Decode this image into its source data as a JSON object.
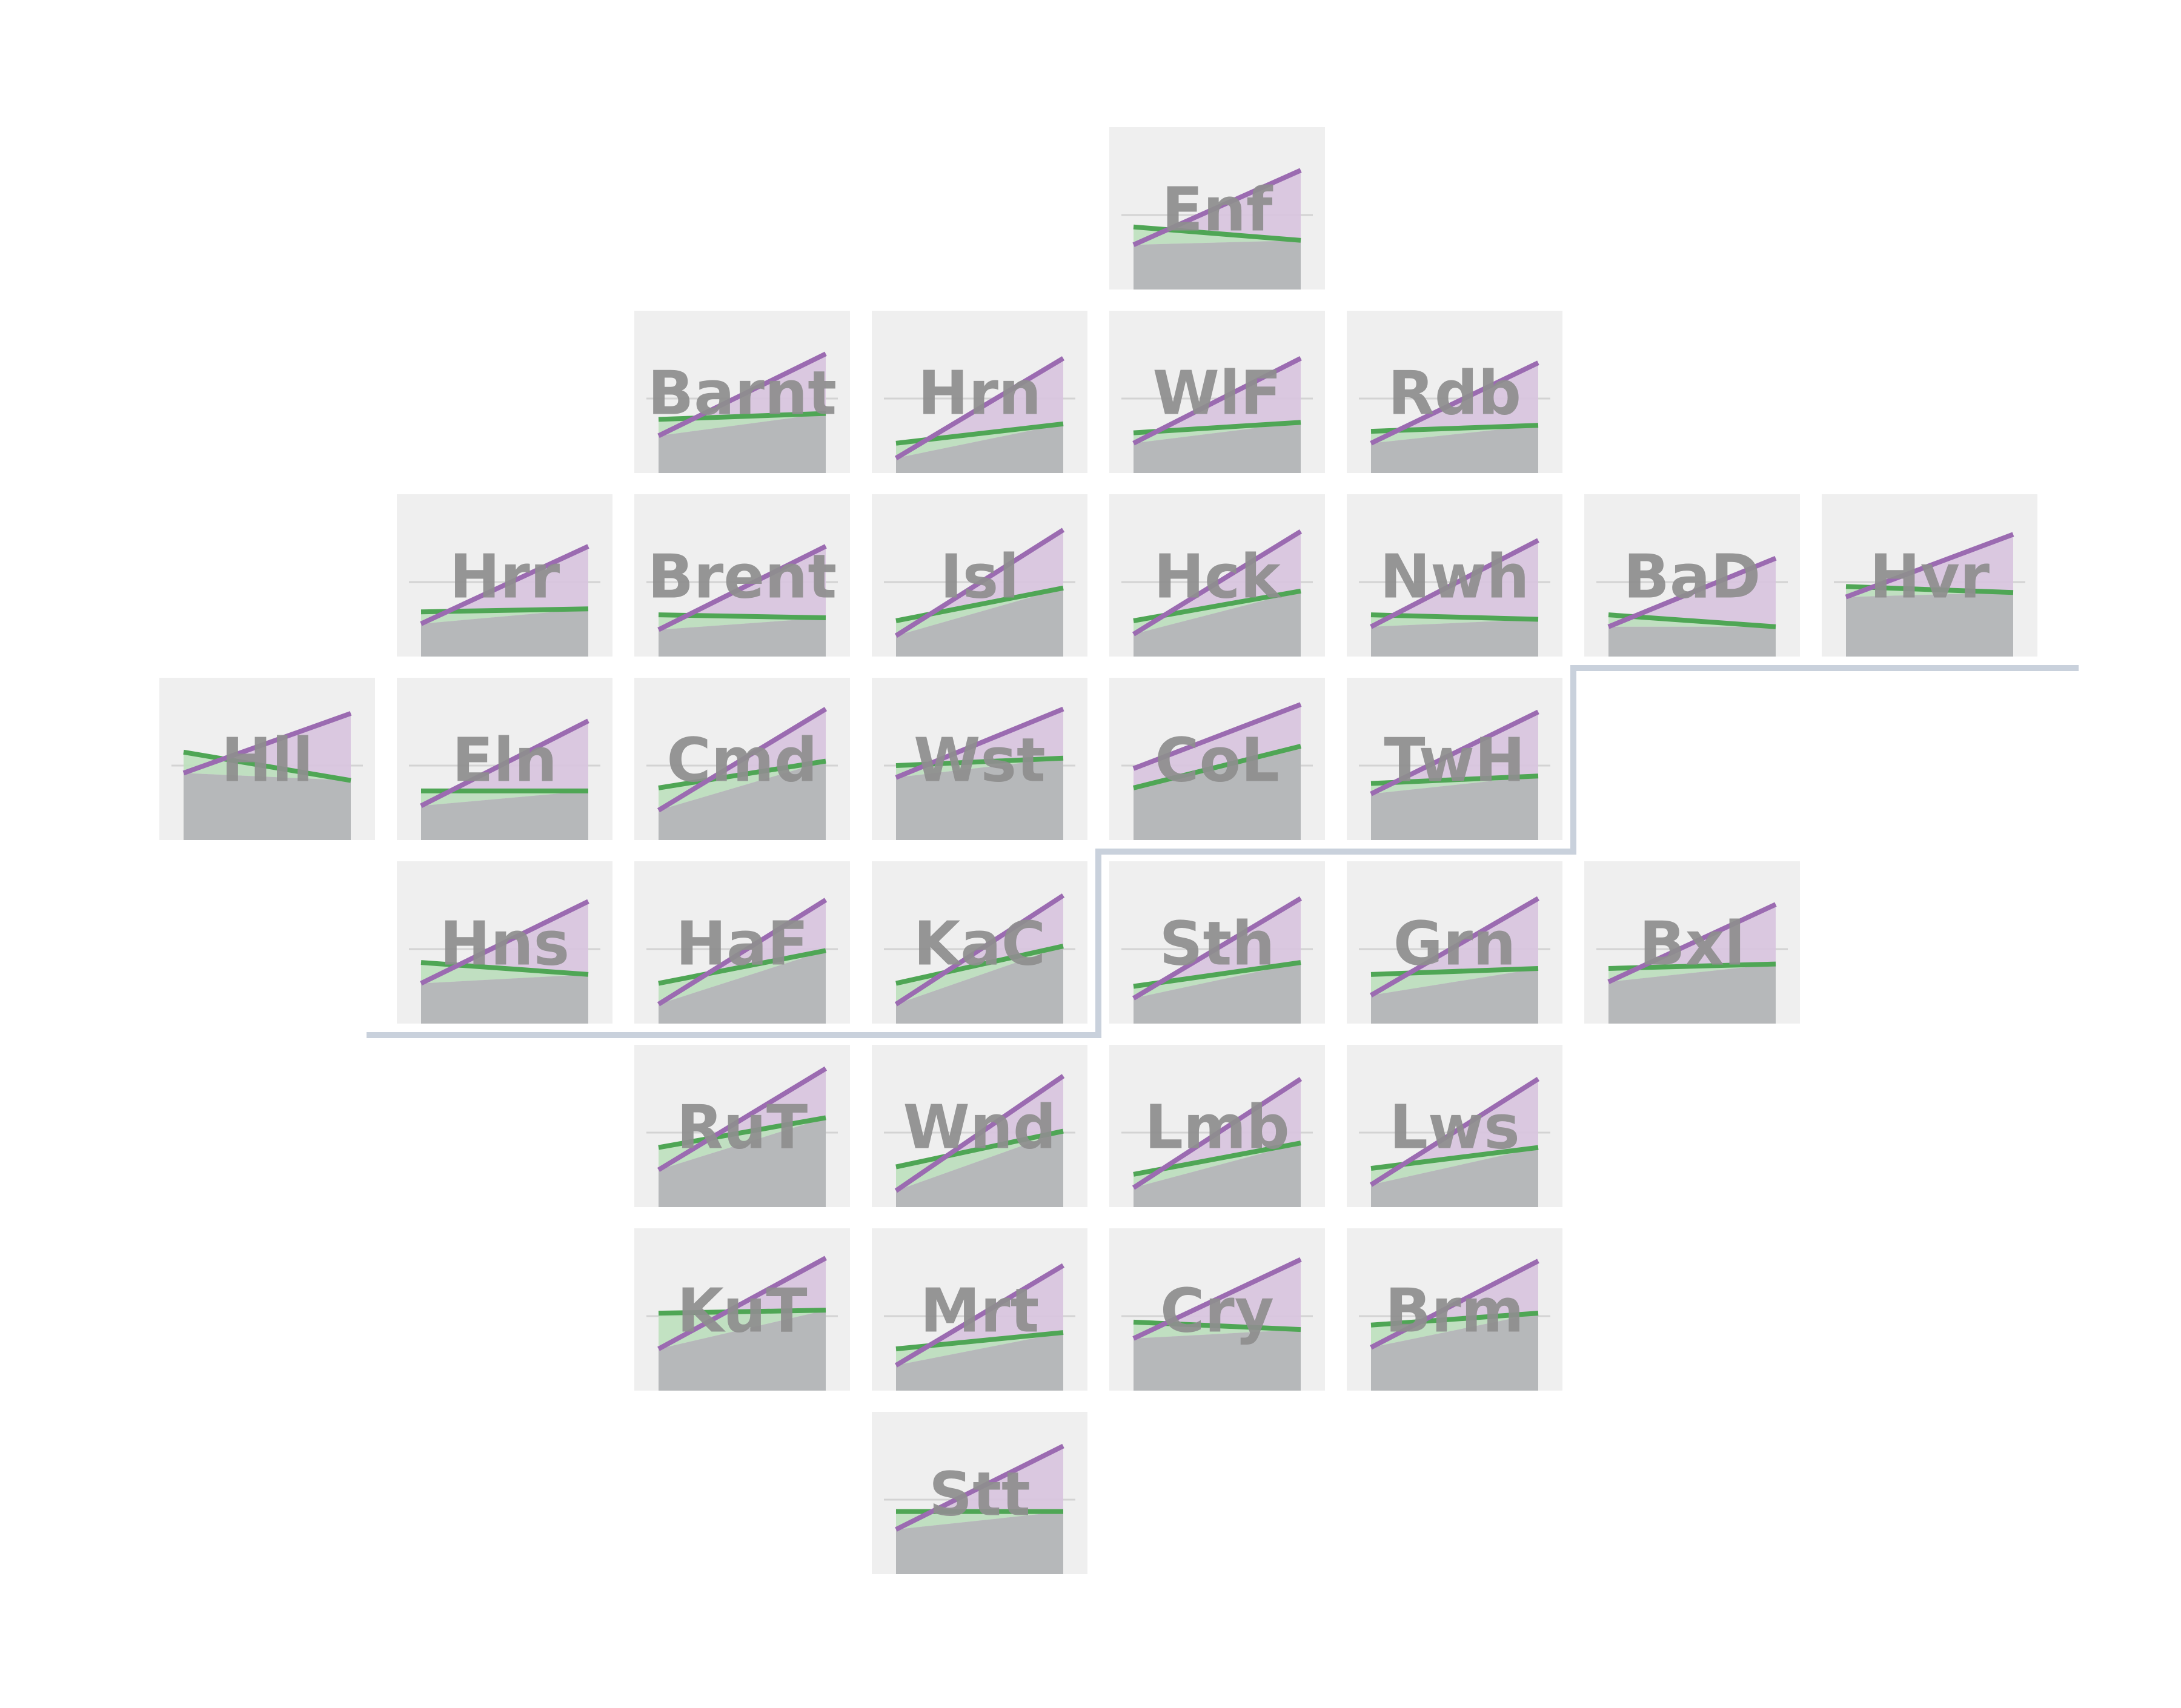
{
  "chart_data": {
    "type": "small-multiples-tile-map",
    "title": "",
    "xlabel": "",
    "ylabel": "",
    "grid": true,
    "ylim": [
      0,
      1
    ],
    "colors": {
      "tile_background": "#efefef",
      "gridline": "#d3d3d3",
      "base_fill": "#b6b8ba",
      "purple_line": "#9b6bb1",
      "purple_fill": "#d8c5de",
      "green_line": "#4fa655",
      "green_fill": "#bfe0bf",
      "divider_line": "#c9d1dc",
      "label_text": "#8e8e8e"
    },
    "divider": {
      "description": "boundary line between upper and lower groups of tiles",
      "path_cells": [
        [
          1,
          5
        ],
        [
          4,
          5
        ],
        [
          4,
          4
        ],
        [
          6,
          4
        ],
        [
          6,
          3
        ],
        [
          8,
          3
        ]
      ]
    },
    "tiles": [
      {
        "label": "Enf",
        "col": 4,
        "row": 0,
        "purple": [
          0.3,
          0.8
        ],
        "green": [
          0.42,
          0.33
        ]
      },
      {
        "label": "Barnt",
        "col": 2,
        "row": 1,
        "purple": [
          0.25,
          0.8
        ],
        "green": [
          0.36,
          0.4
        ]
      },
      {
        "label": "Hrn",
        "col": 3,
        "row": 1,
        "purple": [
          0.1,
          0.77
        ],
        "green": [
          0.2,
          0.33
        ]
      },
      {
        "label": "WlF",
        "col": 4,
        "row": 1,
        "purple": [
          0.2,
          0.77
        ],
        "green": [
          0.27,
          0.34
        ]
      },
      {
        "label": "Rdb",
        "col": 5,
        "row": 1,
        "purple": [
          0.2,
          0.74
        ],
        "green": [
          0.28,
          0.32
        ]
      },
      {
        "label": "Hrr",
        "col": 1,
        "row": 2,
        "purple": [
          0.22,
          0.74
        ],
        "green": [
          0.3,
          0.32
        ]
      },
      {
        "label": "Brent",
        "col": 2,
        "row": 2,
        "purple": [
          0.18,
          0.74
        ],
        "green": [
          0.28,
          0.26
        ]
      },
      {
        "label": "Isl",
        "col": 3,
        "row": 2,
        "purple": [
          0.14,
          0.85
        ],
        "green": [
          0.24,
          0.46
        ]
      },
      {
        "label": "Hck",
        "col": 4,
        "row": 2,
        "purple": [
          0.15,
          0.84
        ],
        "green": [
          0.24,
          0.44
        ]
      },
      {
        "label": "Nwh",
        "col": 5,
        "row": 2,
        "purple": [
          0.2,
          0.78
        ],
        "green": [
          0.28,
          0.25
        ]
      },
      {
        "label": "BaD",
        "col": 6,
        "row": 2,
        "purple": [
          0.2,
          0.66
        ],
        "green": [
          0.28,
          0.2
        ]
      },
      {
        "label": "Hvr",
        "col": 7,
        "row": 2,
        "purple": [
          0.4,
          0.82
        ],
        "green": [
          0.47,
          0.43
        ]
      },
      {
        "label": "Hll",
        "col": 0,
        "row": 3,
        "purple": [
          0.45,
          0.85
        ],
        "green": [
          0.59,
          0.4
        ]
      },
      {
        "label": "Eln",
        "col": 1,
        "row": 3,
        "purple": [
          0.23,
          0.8
        ],
        "green": [
          0.33,
          0.33
        ]
      },
      {
        "label": "Cmd",
        "col": 2,
        "row": 3,
        "purple": [
          0.2,
          0.88
        ],
        "green": [
          0.35,
          0.53
        ]
      },
      {
        "label": "Wst",
        "col": 3,
        "row": 3,
        "purple": [
          0.42,
          0.88
        ],
        "green": [
          0.5,
          0.55
        ]
      },
      {
        "label": "CoL",
        "col": 4,
        "row": 3,
        "purple": [
          0.48,
          0.91
        ],
        "green": [
          0.35,
          0.63
        ]
      },
      {
        "label": "TwH",
        "col": 5,
        "row": 3,
        "purple": [
          0.31,
          0.86
        ],
        "green": [
          0.38,
          0.43
        ]
      },
      {
        "label": "Hns",
        "col": 1,
        "row": 4,
        "purple": [
          0.27,
          0.82
        ],
        "green": [
          0.41,
          0.33
        ]
      },
      {
        "label": "HaF",
        "col": 2,
        "row": 4,
        "purple": [
          0.13,
          0.83
        ],
        "green": [
          0.27,
          0.49
        ]
      },
      {
        "label": "KaC",
        "col": 3,
        "row": 4,
        "purple": [
          0.13,
          0.86
        ],
        "green": [
          0.27,
          0.52
        ]
      },
      {
        "label": "Sth",
        "col": 4,
        "row": 4,
        "purple": [
          0.17,
          0.84
        ],
        "green": [
          0.25,
          0.41
        ]
      },
      {
        "label": "Grn",
        "col": 5,
        "row": 4,
        "purple": [
          0.19,
          0.84
        ],
        "green": [
          0.33,
          0.37
        ]
      },
      {
        "label": "Bxl",
        "col": 6,
        "row": 4,
        "purple": [
          0.28,
          0.8
        ],
        "green": [
          0.37,
          0.4
        ]
      },
      {
        "label": "RuT",
        "col": 2,
        "row": 5,
        "purple": [
          0.25,
          0.93
        ],
        "green": [
          0.4,
          0.6
        ]
      },
      {
        "label": "Wnd",
        "col": 3,
        "row": 5,
        "purple": [
          0.11,
          0.88
        ],
        "green": [
          0.27,
          0.51
        ]
      },
      {
        "label": "Lmb",
        "col": 4,
        "row": 5,
        "purple": [
          0.13,
          0.86
        ],
        "green": [
          0.22,
          0.43
        ]
      },
      {
        "label": "Lws",
        "col": 5,
        "row": 5,
        "purple": [
          0.15,
          0.86
        ],
        "green": [
          0.26,
          0.4
        ]
      },
      {
        "label": "KuT",
        "col": 2,
        "row": 6,
        "purple": [
          0.28,
          0.89
        ],
        "green": [
          0.52,
          0.54
        ]
      },
      {
        "label": "Mrt",
        "col": 3,
        "row": 6,
        "purple": [
          0.17,
          0.84
        ],
        "green": [
          0.28,
          0.39
        ]
      },
      {
        "label": "Cry",
        "col": 4,
        "row": 6,
        "purple": [
          0.35,
          0.88
        ],
        "green": [
          0.46,
          0.41
        ]
      },
      {
        "label": "Brm",
        "col": 5,
        "row": 6,
        "purple": [
          0.29,
          0.87
        ],
        "green": [
          0.44,
          0.52
        ]
      },
      {
        "label": "Stt",
        "col": 3,
        "row": 7,
        "purple": [
          0.3,
          0.86
        ],
        "green": [
          0.42,
          0.42
        ]
      }
    ]
  }
}
